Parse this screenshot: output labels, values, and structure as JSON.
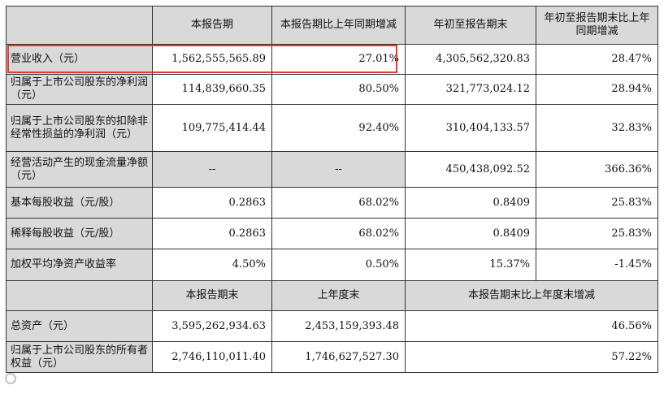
{
  "table": {
    "header": {
      "col1": "本报告期",
      "col2": "本报告期比上年同期增减",
      "col3": "年初至报告期末",
      "col4": "年初至报告期末比上年同期增减"
    },
    "rows": [
      {
        "label": "营业收入（元）",
        "v1": "1,562,555,565.89",
        "v2": "27.01%",
        "v3": "4,305,562,320.83",
        "v4": "28.47%"
      },
      {
        "label": "归属于上市公司股东的净利润（元）",
        "v1": "114,839,660.35",
        "v2": "80.50%",
        "v3": "321,773,024.12",
        "v4": "28.94%"
      },
      {
        "label": "归属于上市公司股东的扣除非经常性损益的净利润（元）",
        "v1": "109,775,414.44",
        "v2": "92.40%",
        "v3": "310,404,133.57",
        "v4": "32.83%"
      },
      {
        "label": "经营活动产生的现金流量净额（元）",
        "v1": "--",
        "v2": "--",
        "v3": "450,438,092.52",
        "v4": "366.36%"
      },
      {
        "label": "基本每股收益（元/股）",
        "v1": "0.2863",
        "v2": "68.02%",
        "v3": "0.8409",
        "v4": "25.83%"
      },
      {
        "label": "稀释每股收益（元/股）",
        "v1": "0.2863",
        "v2": "68.02%",
        "v3": "0.8409",
        "v4": "25.83%"
      },
      {
        "label": "加权平均净资产收益率",
        "v1": "4.50%",
        "v2": "0.50%",
        "v3": "15.37%",
        "v4": "-1.45%"
      }
    ],
    "header2": {
      "col1": "本报告期末",
      "col2": "上年度末",
      "col3": "本报告期末比上年度末增减"
    },
    "rows2": [
      {
        "label": "总资产（元）",
        "v1": "3,595,262,934.63",
        "v2": "2,453,159,393.48",
        "v3": "46.56%"
      },
      {
        "label": "归属于上市公司股东的所有者权益（元）",
        "v1": "2,746,110,011.40",
        "v2": "1,746,627,527.30",
        "v3": "57.22%"
      }
    ]
  },
  "colors": {
    "header_bg": "#d9d9d9",
    "highlight": "#e53935"
  }
}
